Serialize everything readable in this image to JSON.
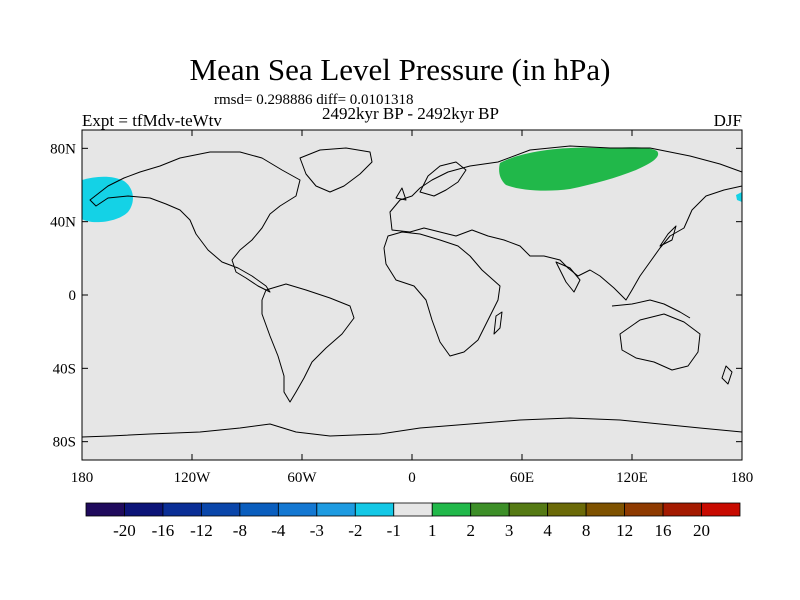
{
  "map": {
    "title": "Mean Sea Level Pressure (in hPa)",
    "stats": "rmsd= 0.298886 diff= 0.0101318",
    "period": "2492kyr BP - 2492kyr BP",
    "experiment": "Expt = tfMdv-teWtv",
    "season": "DJF",
    "background_color": "#e6e6e6",
    "lat_ticks": [
      "80N",
      "40N",
      "0",
      "40S",
      "80S"
    ],
    "lon_ticks": [
      "180",
      "120W",
      "60W",
      "0",
      "60E",
      "120E",
      "180"
    ]
  },
  "colorbar": {
    "colors": [
      "#1f0a5c",
      "#0c1478",
      "#0a2e96",
      "#0a46aa",
      "#0a5ebe",
      "#1478d2",
      "#1e9be1",
      "#14c8e6",
      "#e6e6e6",
      "#21b84a",
      "#3d8f28",
      "#557a14",
      "#6b6a08",
      "#7e5200",
      "#8e3a00",
      "#a41a00",
      "#c80a00"
    ],
    "labels": [
      "-20",
      "-16",
      "-12",
      "-8",
      "-4",
      "-3",
      "-2",
      "-1",
      "1",
      "2",
      "3",
      "4",
      "8",
      "12",
      "16",
      "20"
    ]
  }
}
